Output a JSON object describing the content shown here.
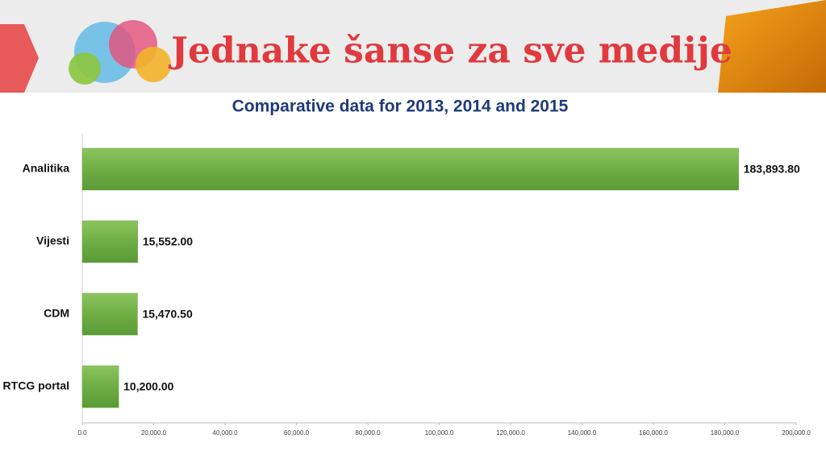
{
  "header": {
    "title": "Jednake šanse za sve medije"
  },
  "chart_data": {
    "type": "hbar",
    "title": "Comparative data for 2013, 2014 and 2015",
    "categories": [
      "Analitika",
      "Vijesti",
      "CDM",
      "RTCG portal"
    ],
    "values": [
      183893.8,
      15552,
      15470.5,
      10200
    ],
    "value_labels": [
      "183,893.80",
      "15,552.00",
      "15,470.50",
      "10,200.00"
    ],
    "color": "#70ad47",
    "xlim": [
      0,
      200000
    ],
    "xticks": [
      {
        "value": 0,
        "label": "0.0"
      },
      {
        "value": 20000,
        "label": "20,000.0"
      },
      {
        "value": 40000,
        "label": "40,000.0"
      },
      {
        "value": 60000,
        "label": "60,000.0"
      },
      {
        "value": 80000,
        "label": "80,000.0"
      },
      {
        "value": 100000,
        "label": "100,000.0"
      },
      {
        "value": 120000,
        "label": "120,000.0"
      },
      {
        "value": 140000,
        "label": "140,000.0"
      },
      {
        "value": 160000,
        "label": "160,000.0"
      },
      {
        "value": 180000,
        "label": "180,000.0"
      },
      {
        "value": 200000,
        "label": "200,000.0"
      }
    ],
    "grid": false
  }
}
